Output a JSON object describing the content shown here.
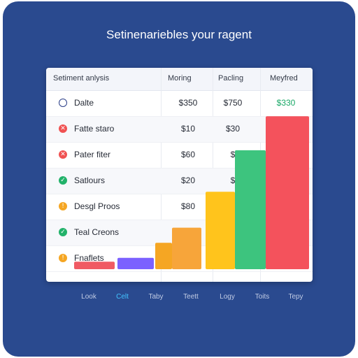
{
  "title": "Setinenariebles your ragent",
  "table": {
    "header": {
      "name": "Setiment anlysis",
      "col1": "Moring",
      "col2": "Pacling",
      "col3": "Meyfred"
    },
    "rows": [
      {
        "icon": "circle-outline-icon",
        "color": "#2c3f88",
        "glyph": "",
        "label": "Dalte",
        "v1": "$350",
        "v2": "$750",
        "v3": "$330"
      },
      {
        "icon": "x-icon",
        "color": "#f05252",
        "glyph": "✕",
        "label": "Fatte staro",
        "v1": "$10",
        "v2": "$30",
        "v3": ""
      },
      {
        "icon": "x-icon",
        "color": "#f05252",
        "glyph": "✕",
        "label": "Pater fiter",
        "v1": "$60",
        "v2": "$",
        "v3": ""
      },
      {
        "icon": "check-icon",
        "color": "#22b26a",
        "glyph": "✓",
        "label": "Satlours",
        "v1": "$20",
        "v2": "$",
        "v3": ""
      },
      {
        "icon": "warning-icon",
        "color": "#f5a623",
        "glyph": "!",
        "label": "Desgl Proos",
        "v1": "$80",
        "v2": "",
        "v3": ""
      },
      {
        "icon": "check-icon",
        "color": "#22b26a",
        "glyph": "✓",
        "label": "Teal Creons",
        "v1": "",
        "v2": "",
        "v3": ""
      },
      {
        "icon": "warning-icon",
        "color": "#f5a623",
        "glyph": "!",
        "label": "Fnaflets",
        "v1": "",
        "v2": "",
        "v3": ""
      }
    ]
  },
  "chart_data": {
    "type": "bar",
    "categories": [
      "Look",
      "Celt",
      "Taby",
      "Teett",
      "Logy",
      "Toits",
      "Tepy"
    ],
    "values": [
      4,
      6,
      14,
      22,
      41,
      63,
      81
    ],
    "colors": [
      "#f05a63",
      "#7b61ff",
      "#f5a623",
      "#f7a53a",
      "#ffc41c",
      "#3dc47e",
      "#f4525c"
    ],
    "highlight_category": "Celt",
    "ylim": [
      0,
      100
    ]
  }
}
